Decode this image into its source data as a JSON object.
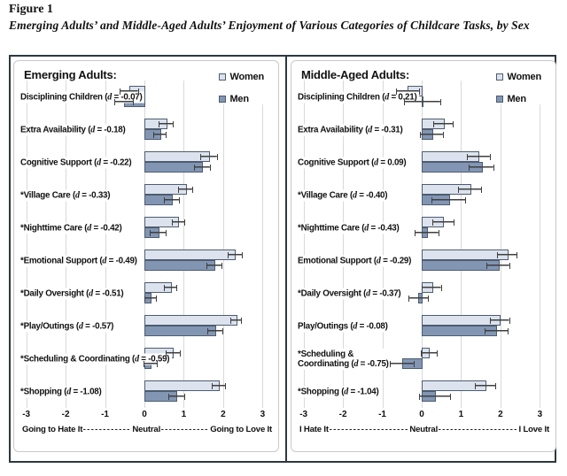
{
  "figure": {
    "label": "Figure 1",
    "caption": "Emerging Adults’ and Middle-Aged Adults’ Enjoyment of Various Categories of Childcare Tasks, by Sex"
  },
  "colors": {
    "women_fill": "#dce3ee",
    "men_fill": "#8296b4",
    "bar_border": "#4e5c6e",
    "error_bar": "#3f3f3f",
    "gridline": "#d9d9d9",
    "frame": "#2c3840"
  },
  "chart_data": [
    {
      "type": "bar",
      "orientation": "horizontal",
      "title": "Emerging Adults:",
      "xlim": [
        -3,
        3
      ],
      "xticks": [
        -3,
        -2,
        -1,
        0,
        1,
        2,
        3
      ],
      "grid": true,
      "legend_position": "top-right",
      "axis_caption": {
        "left": "Going to Hate It",
        "center": "Neutral",
        "right": "Going to Love It"
      },
      "categories": [
        {
          "name": "Disciplining Children",
          "d": "-0.07"
        },
        {
          "name": "Extra Availability",
          "d": "-0.18"
        },
        {
          "name": "Cognitive Support",
          "d": "-0.22"
        },
        {
          "name": "*Village Care",
          "d": "-0.33"
        },
        {
          "name": "*Nighttime Care",
          "d": "-0.42"
        },
        {
          "name": "*Emotional Support",
          "d": "-0.49"
        },
        {
          "name": "*Daily Oversight",
          "d": "-0.51"
        },
        {
          "name": "*Play/Outings",
          "d": "-0.57"
        },
        {
          "name": "*Scheduling & Coordinating",
          "d": "-0.59"
        },
        {
          "name": "*Shopping",
          "d": "-1.08"
        }
      ],
      "series": [
        {
          "name": "Women",
          "values": [
            -0.38,
            0.56,
            1.64,
            1.05,
            0.86,
            2.3,
            0.67,
            2.33,
            0.73,
            1.89
          ],
          "errors": [
            0.24,
            0.19,
            0.22,
            0.19,
            0.17,
            0.19,
            0.17,
            0.15,
            0.19,
            0.19
          ]
        },
        {
          "name": "Men",
          "values": [
            -0.52,
            0.4,
            1.47,
            0.7,
            0.35,
            1.78,
            0.15,
            1.8,
            0.15,
            0.82
          ],
          "errors": [
            0.25,
            0.17,
            0.21,
            0.2,
            0.22,
            0.21,
            0.16,
            0.2,
            0.18,
            0.21
          ]
        }
      ]
    },
    {
      "type": "bar",
      "orientation": "horizontal",
      "title": "Middle-Aged Adults:",
      "xlim": [
        -3,
        3
      ],
      "xticks": [
        -3,
        -2,
        -1,
        0,
        1,
        2,
        3
      ],
      "grid": true,
      "legend_position": "top-right",
      "axis_caption": {
        "left": "I Hate It",
        "center": "Neutral",
        "right": "I Love It"
      },
      "categories": [
        {
          "name": "Disciplining Children",
          "d": "0.21"
        },
        {
          "name": "Extra Availability",
          "d": "-0.31"
        },
        {
          "name": "Cognitive Support",
          "d": "0.09"
        },
        {
          "name": "*Village Care",
          "d": "-0.40"
        },
        {
          "name": "*Nighttime Care",
          "d": "-0.43"
        },
        {
          "name": "Emotional Support",
          "d": "-0.29"
        },
        {
          "name": "*Daily Oversight",
          "d": "-0.37"
        },
        {
          "name": "Play/Outings",
          "d": "-0.08"
        },
        {
          "name": "*Scheduling &\nCoordinating",
          "d": "-0.75"
        },
        {
          "name": "*Shopping",
          "d": "-1.04"
        }
      ],
      "series": [
        {
          "name": "Women",
          "values": [
            -0.35,
            0.56,
            1.45,
            1.23,
            0.55,
            2.18,
            0.26,
            1.99,
            0.19,
            1.62
          ],
          "errors": [
            0.3,
            0.26,
            0.3,
            0.31,
            0.28,
            0.26,
            0.25,
            0.25,
            0.22,
            0.27
          ]
        },
        {
          "name": "Men",
          "values": [
            0.02,
            0.26,
            1.52,
            0.69,
            0.14,
            1.95,
            -0.08,
            1.9,
            -0.5,
            0.34
          ],
          "errors": [
            0.47,
            0.3,
            0.32,
            0.44,
            0.31,
            0.3,
            0.26,
            0.31,
            0.31,
            0.41
          ]
        }
      ]
    }
  ]
}
